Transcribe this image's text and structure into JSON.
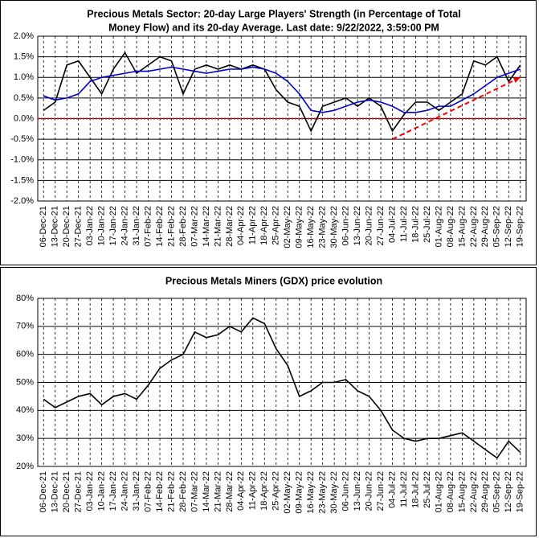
{
  "chart_data": [
    {
      "type": "line",
      "title": [
        "Precious Metals Sector: 20-day Large Players' Strength (in Percentage of Total",
        "Money Flow) and its 20-day Average. Last date: 9/22/2022, 3:59:00 PM"
      ],
      "categories": [
        "06-Dec-21",
        "13-Dec-21",
        "20-Dec-21",
        "27-Dec-21",
        "03-Jan-22",
        "10-Jan-22",
        "17-Jan-22",
        "24-Jan-22",
        "31-Jan-22",
        "07-Feb-22",
        "14-Feb-22",
        "21-Feb-22",
        "28-Feb-22",
        "07-Mar-22",
        "14-Mar-22",
        "21-Mar-22",
        "28-Mar-22",
        "04-Apr-22",
        "11-Apr-22",
        "18-Apr-22",
        "25-Apr-22",
        "02-May-22",
        "09-May-22",
        "16-May-22",
        "23-May-22",
        "30-May-22",
        "06-Jun-22",
        "13-Jun-22",
        "20-Jun-22",
        "27-Jun-22",
        "04-Jul-22",
        "11-Jul-22",
        "18-Jul-22",
        "25-Jul-22",
        "01-Aug-22",
        "08-Aug-22",
        "15-Aug-22",
        "22-Aug-22",
        "29-Aug-22",
        "05-Sep-22",
        "12-Sep-22",
        "19-Sep-22"
      ],
      "series": [
        {
          "color": "#000000",
          "values": [
            0.2,
            0.4,
            1.3,
            1.4,
            1.0,
            0.6,
            1.2,
            1.6,
            1.1,
            1.3,
            1.5,
            1.4,
            0.6,
            1.2,
            1.3,
            1.2,
            1.3,
            1.2,
            1.3,
            1.2,
            0.7,
            0.4,
            0.3,
            -0.3,
            0.3,
            0.4,
            0.5,
            0.3,
            0.5,
            0.3,
            -0.3,
            0.1,
            0.4,
            0.4,
            0.2,
            0.4,
            0.6,
            1.4,
            1.3,
            1.5,
            0.9,
            1.3
          ]
        },
        {
          "color": "#0000cc",
          "values": [
            0.55,
            0.45,
            0.5,
            0.6,
            0.9,
            1.0,
            1.05,
            1.1,
            1.15,
            1.15,
            1.2,
            1.25,
            1.2,
            1.15,
            1.1,
            1.15,
            1.2,
            1.2,
            1.25,
            1.2,
            1.1,
            0.9,
            0.6,
            0.2,
            0.15,
            0.2,
            0.3,
            0.4,
            0.45,
            0.4,
            0.3,
            0.15,
            0.15,
            0.2,
            0.3,
            0.3,
            0.45,
            0.6,
            0.8,
            1.0,
            1.1,
            1.2
          ]
        }
      ],
      "ylim": [
        -2,
        2
      ],
      "yticks": [
        {
          "value": -2,
          "label": "-2.0%"
        },
        {
          "value": -1.5,
          "label": "-1.5%"
        },
        {
          "value": -1,
          "label": "-1.0%"
        },
        {
          "value": -0.5,
          "label": "-0.5%"
        },
        {
          "value": 0,
          "label": "0.0%"
        },
        {
          "value": 0.5,
          "label": "0.5%"
        },
        {
          "value": 1,
          "label": "1.0%"
        },
        {
          "value": 1.5,
          "label": "1.5%"
        },
        {
          "value": 2,
          "label": "2.0%"
        }
      ],
      "grid": true,
      "reference_line": {
        "value": 0,
        "color": "#ff0000"
      },
      "trend_line": {
        "color": "#ff0000",
        "x": [
          "04-Jul-22",
          "19-Sep-22"
        ],
        "values": [
          -0.5,
          1.0
        ]
      }
    },
    {
      "type": "line",
      "title": [
        "Precious Metals Miners (GDX) price evolution"
      ],
      "categories": [
        "06-Dec-21",
        "13-Dec-21",
        "20-Dec-21",
        "27-Dec-21",
        "03-Jan-22",
        "10-Jan-22",
        "17-Jan-22",
        "24-Jan-22",
        "31-Jan-22",
        "07-Feb-22",
        "14-Feb-22",
        "21-Feb-22",
        "28-Feb-22",
        "07-Mar-22",
        "14-Mar-22",
        "21-Mar-22",
        "28-Mar-22",
        "04-Apr-22",
        "11-Apr-22",
        "18-Apr-22",
        "25-Apr-22",
        "02-May-22",
        "09-May-22",
        "16-May-22",
        "23-May-22",
        "30-May-22",
        "06-Jun-22",
        "13-Jun-22",
        "20-Jun-22",
        "27-Jun-22",
        "04-Jul-22",
        "11-Jul-22",
        "18-Jul-22",
        "25-Jul-22",
        "01-Aug-22",
        "08-Aug-22",
        "15-Aug-22",
        "22-Aug-22",
        "29-Aug-22",
        "05-Sep-22",
        "12-Sep-22",
        "19-Sep-22"
      ],
      "series": [
        {
          "color": "#000000",
          "values": [
            44,
            41,
            43,
            45,
            46,
            42,
            45,
            46,
            44,
            49,
            55,
            58,
            60,
            68,
            66,
            67,
            70,
            68,
            73,
            71,
            62,
            56,
            45,
            47,
            50,
            50,
            51,
            47,
            45,
            40,
            33,
            30,
            29,
            30,
            30,
            31,
            32,
            29,
            26,
            23,
            29,
            25
          ]
        }
      ],
      "ylim": [
        20,
        80
      ],
      "yticks": [
        {
          "value": 20,
          "label": "20%"
        },
        {
          "value": 30,
          "label": "30%"
        },
        {
          "value": 40,
          "label": "40%"
        },
        {
          "value": 50,
          "label": "50%"
        },
        {
          "value": 60,
          "label": "60%"
        },
        {
          "value": 70,
          "label": "70%"
        },
        {
          "value": 80,
          "label": "80%"
        }
      ],
      "grid": true
    }
  ]
}
